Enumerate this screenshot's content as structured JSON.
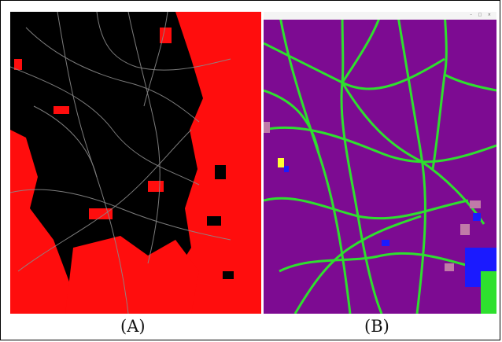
{
  "figure": {
    "panels": [
      {
        "caption": "(A)",
        "colors": {
          "background": "#000000",
          "highlight": "#ff0d0d",
          "roads": "#8a8a8a"
        }
      },
      {
        "caption": "(B)",
        "window_title": "",
        "colors": {
          "background": "#7d0b92",
          "roads": "#2ee02e",
          "patches": [
            "#1a1aff",
            "#ffff33",
            "#2ee02e",
            "#c07aa8"
          ]
        }
      }
    ]
  }
}
